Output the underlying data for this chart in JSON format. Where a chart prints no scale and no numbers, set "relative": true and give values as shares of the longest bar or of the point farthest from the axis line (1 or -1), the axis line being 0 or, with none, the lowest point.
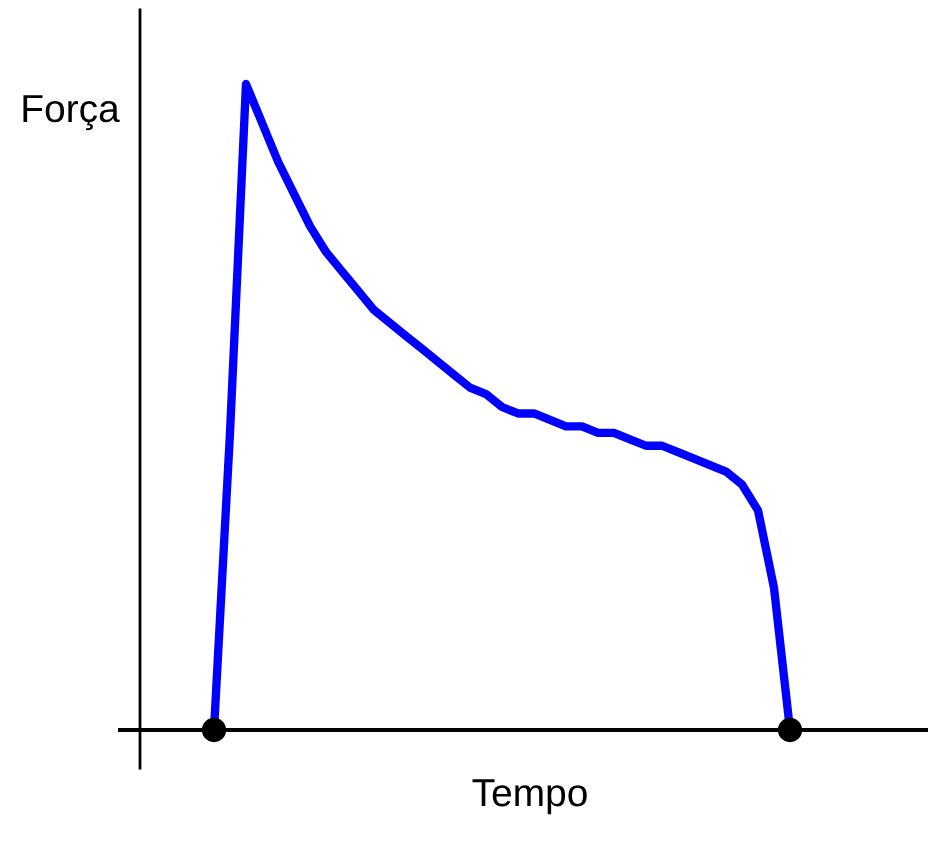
{
  "chart_data": {
    "type": "line",
    "relative": true,
    "xlabel": "Tempo",
    "ylabel": "Força",
    "categories": [
      null,
      null,
      null,
      null,
      null,
      null,
      null,
      null,
      null,
      null,
      null,
      null,
      null,
      null,
      null,
      null,
      null,
      null,
      null,
      null,
      null,
      null,
      null,
      null,
      null,
      null,
      null,
      null,
      null,
      null,
      null,
      null,
      null,
      null,
      null,
      null,
      null
    ],
    "series": [
      {
        "color": "#0000ff",
        "values": [
          0,
          0.46,
          1.0,
          0.94,
          0.88,
          0.83,
          0.78,
          0.74,
          0.71,
          0.68,
          0.65,
          0.63,
          0.61,
          0.59,
          0.57,
          0.55,
          0.53,
          0.52,
          0.5,
          0.49,
          0.49,
          0.48,
          0.47,
          0.47,
          0.46,
          0.46,
          0.45,
          0.44,
          0.44,
          0.43,
          0.42,
          0.41,
          0.4,
          0.38,
          0.34,
          0.22,
          0
        ]
      }
    ]
  }
}
